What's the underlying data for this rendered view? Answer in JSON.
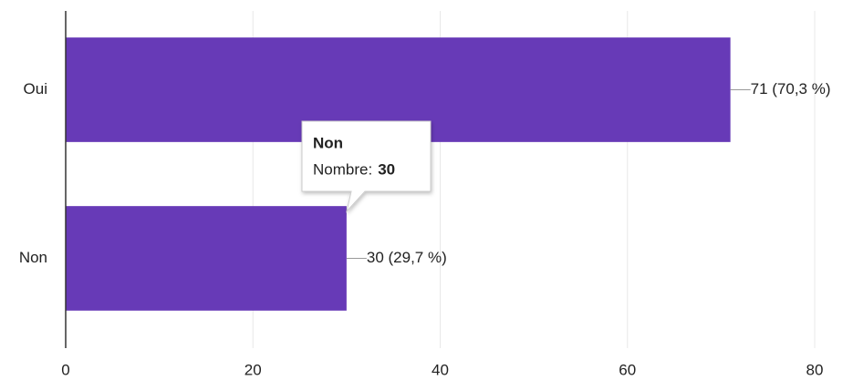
{
  "chart_data": {
    "type": "barh",
    "categories": [
      "Oui",
      "Non"
    ],
    "values": [
      71,
      30
    ],
    "value_labels": [
      "71 (70,3 %)",
      "30 (29,7 %)"
    ],
    "color": "#673ab7",
    "xlim": [
      0,
      80
    ],
    "xticks": [
      0,
      20,
      40,
      60,
      80
    ],
    "grid": true,
    "tooltip": {
      "label": "Nombre:"
    }
  }
}
